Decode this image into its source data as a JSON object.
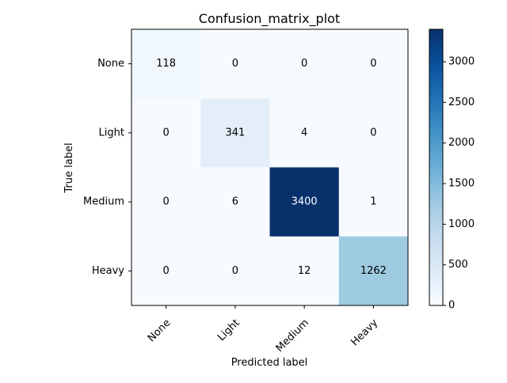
{
  "chart_data": {
    "type": "heatmap",
    "title": "Confusion_matrix_plot",
    "xlabel": "Predicted label",
    "ylabel": "True label",
    "x_categories": [
      "None",
      "Light",
      "Medium",
      "Heavy"
    ],
    "y_categories": [
      "None",
      "Light",
      "Medium",
      "Heavy"
    ],
    "values": [
      [
        118,
        0,
        0,
        0
      ],
      [
        0,
        341,
        4,
        0
      ],
      [
        0,
        6,
        3400,
        1
      ],
      [
        0,
        0,
        12,
        1262
      ]
    ],
    "colormap": "Blues",
    "colorbar": {
      "range": [
        0,
        3400
      ],
      "ticks": [
        0,
        500,
        1000,
        1500,
        2000,
        2500,
        3000
      ]
    },
    "text_color_light": "#ffffff",
    "text_color_dark": "#000000"
  }
}
